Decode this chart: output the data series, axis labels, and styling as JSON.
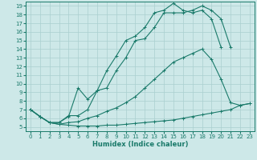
{
  "xlabel": "Humidex (Indice chaleur)",
  "bg_color": "#cde8e8",
  "grid_color": "#aacfcf",
  "line_color": "#1a7a6a",
  "xlim": [
    -0.5,
    23.5
  ],
  "ylim": [
    4.5,
    19.5
  ],
  "yticks": [
    5,
    6,
    7,
    8,
    9,
    10,
    11,
    12,
    13,
    14,
    15,
    16,
    17,
    18,
    19
  ],
  "xticks": [
    0,
    1,
    2,
    3,
    4,
    5,
    6,
    7,
    8,
    9,
    10,
    11,
    12,
    13,
    14,
    15,
    16,
    17,
    18,
    19,
    20,
    21,
    22,
    23
  ],
  "series": [
    {
      "x": [
        0,
        1,
        2,
        3,
        4,
        5,
        6,
        7,
        8,
        9,
        10,
        11,
        12,
        13,
        14,
        15,
        16,
        17,
        18,
        19,
        20,
        21,
        22,
        23
      ],
      "y": [
        7.0,
        6.2,
        5.5,
        5.3,
        5.2,
        5.1,
        5.1,
        5.1,
        5.2,
        5.2,
        5.3,
        5.4,
        5.5,
        5.6,
        5.7,
        5.8,
        6.0,
        6.2,
        6.4,
        6.6,
        6.8,
        7.0,
        7.5,
        7.7
      ]
    },
    {
      "x": [
        0,
        1,
        2,
        3,
        4,
        5,
        6,
        7,
        8,
        9,
        10,
        11,
        12,
        13,
        14,
        15,
        16,
        17,
        18,
        19,
        20,
        21,
        22,
        23
      ],
      "y": [
        7.0,
        6.2,
        5.5,
        5.3,
        5.5,
        5.6,
        6.0,
        6.3,
        6.8,
        7.2,
        7.8,
        8.5,
        9.5,
        10.5,
        11.5,
        12.5,
        13.0,
        13.5,
        14.0,
        12.8,
        10.5,
        7.8,
        7.5,
        7.7
      ]
    },
    {
      "x": [
        0,
        1,
        2,
        3,
        4,
        5,
        6,
        7,
        8,
        9,
        10,
        11,
        12,
        13,
        14,
        15,
        16,
        17,
        18,
        19,
        20,
        21
      ],
      "y": [
        7.0,
        6.2,
        5.5,
        5.5,
        6.3,
        6.3,
        7.0,
        9.2,
        9.5,
        11.5,
        13.0,
        15.0,
        15.2,
        16.5,
        18.2,
        18.2,
        18.2,
        18.5,
        19.0,
        18.5,
        17.5,
        14.2
      ]
    },
    {
      "x": [
        0,
        1,
        2,
        3,
        4,
        5,
        6,
        7,
        8,
        9,
        10,
        11,
        12,
        13,
        14,
        15,
        16,
        17,
        18,
        19,
        20
      ],
      "y": [
        7.0,
        6.2,
        5.5,
        5.5,
        6.2,
        9.5,
        8.2,
        9.2,
        11.5,
        13.2,
        15.0,
        15.5,
        16.5,
        18.2,
        18.5,
        19.3,
        18.5,
        18.2,
        18.5,
        17.5,
        14.2
      ]
    }
  ]
}
